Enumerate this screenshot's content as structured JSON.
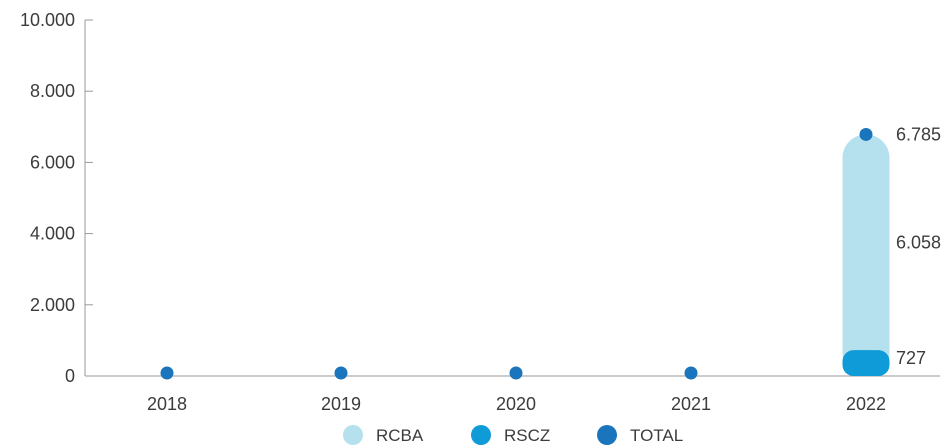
{
  "chart_data": {
    "type": "bar",
    "categories": [
      "2018",
      "2019",
      "2020",
      "2021",
      "2022"
    ],
    "ylim": [
      0,
      10000
    ],
    "yticks": [
      0,
      2000,
      4000,
      6000,
      8000,
      10000
    ],
    "ytick_labels": [
      "0",
      "2.000",
      "4.000",
      "6.000",
      "8.000",
      "10.000"
    ],
    "stacked": true,
    "series": [
      {
        "name": "RSCZ",
        "values": [
          0,
          0,
          0,
          0,
          727
        ],
        "data_labels": [
          "",
          "",
          "",
          "",
          "727"
        ]
      },
      {
        "name": "RCBA",
        "values": [
          0,
          0,
          0,
          0,
          6058
        ],
        "data_labels": [
          "",
          "",
          "",
          "",
          "6.058"
        ]
      }
    ],
    "total": {
      "name": "TOTAL",
      "values": [
        0,
        0,
        0,
        0,
        6785
      ],
      "data_labels": [
        "",
        "",
        "",
        "",
        "6.785"
      ]
    },
    "legend": [
      "RCBA",
      "RSCZ",
      "TOTAL"
    ],
    "legend_position": "bottom",
    "colors": {
      "RCBA": "#b5e0ee",
      "RSCZ": "#0f9ad8",
      "TOTAL": "#1b75bc",
      "axis": "#9a9a9a"
    },
    "grid": false
  }
}
